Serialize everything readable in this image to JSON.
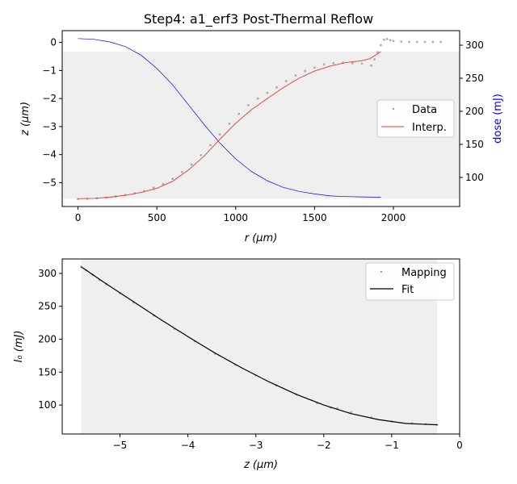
{
  "figure_title": "Step4: a1_erf3 Post-Thermal Reflow",
  "colors": {
    "data_points": "#9a9a9a",
    "interp_line": "#e03c31",
    "dose_line": "#0000ff",
    "fit_line": "#000000",
    "shade": "#efefef",
    "dose_axis_label": "#0000ff"
  },
  "chart_data": [
    {
      "type": "line",
      "title": "Step4: a1_erf3 Post-Thermal Reflow",
      "xlabel": "r (μm)",
      "ylabel": "z (μm)",
      "y2label": "dose (mJ)",
      "xlim": [
        -100,
        2420
      ],
      "ylim": [
        -5.85,
        0.42
      ],
      "y2lim": [
        56,
        322
      ],
      "xticks": [
        0,
        500,
        1000,
        1500,
        2000
      ],
      "yticks": [
        0,
        -1,
        -2,
        -3,
        -4,
        -5
      ],
      "y2ticks": [
        100,
        150,
        200,
        250,
        300
      ],
      "shaded_region": {
        "y_from": -5.57,
        "y_to": -0.33
      },
      "legend": {
        "position": "center-right",
        "entries": [
          "Data",
          "Interp."
        ]
      },
      "series": [
        {
          "name": "Data",
          "style": "points",
          "x": [
            0,
            60,
            120,
            180,
            240,
            300,
            360,
            420,
            480,
            540,
            600,
            660,
            720,
            780,
            840,
            900,
            960,
            1020,
            1080,
            1140,
            1200,
            1260,
            1320,
            1380,
            1440,
            1500,
            1560,
            1620,
            1680,
            1740,
            1800,
            1860,
            1880,
            1900,
            1920,
            1940,
            1960,
            1980,
            2000,
            2050,
            2100,
            2150,
            2200,
            2250,
            2300
          ],
          "y": [
            -5.58,
            -5.57,
            -5.56,
            -5.53,
            -5.49,
            -5.44,
            -5.38,
            -5.3,
            -5.18,
            -5.05,
            -4.86,
            -4.62,
            -4.35,
            -4.02,
            -3.66,
            -3.28,
            -2.9,
            -2.55,
            -2.24,
            -2.0,
            -1.8,
            -1.6,
            -1.38,
            -1.18,
            -1.02,
            -0.9,
            -0.78,
            -0.74,
            -0.72,
            -0.74,
            -0.76,
            -0.82,
            -0.6,
            -0.35,
            -0.1,
            0.1,
            0.12,
            0.08,
            0.05,
            0.03,
            0.02,
            0.02,
            0.02,
            0.02,
            0.02
          ]
        },
        {
          "name": "Interp.",
          "style": "line",
          "x": [
            0,
            100,
            200,
            300,
            400,
            500,
            600,
            700,
            800,
            900,
            1000,
            1100,
            1200,
            1300,
            1400,
            1500,
            1600,
            1700,
            1800,
            1850,
            1920
          ],
          "y": [
            -5.57,
            -5.56,
            -5.52,
            -5.45,
            -5.35,
            -5.2,
            -4.95,
            -4.55,
            -4.05,
            -3.45,
            -2.88,
            -2.4,
            -2.0,
            -1.62,
            -1.28,
            -1.02,
            -0.84,
            -0.72,
            -0.65,
            -0.58,
            -0.33
          ]
        },
        {
          "name": "dose",
          "axis": "right",
          "style": "line",
          "x": [
            0,
            100,
            200,
            300,
            400,
            500,
            600,
            700,
            800,
            900,
            1000,
            1100,
            1200,
            1300,
            1400,
            1500,
            1600,
            1700,
            1800,
            1920
          ],
          "y": [
            310,
            309,
            305,
            298,
            285,
            265,
            240,
            210,
            180,
            152,
            128,
            109,
            95,
            85,
            79,
            75,
            72,
            71,
            70.5,
            70
          ]
        }
      ]
    },
    {
      "type": "line",
      "xlabel": "z (μm)",
      "ylabel": "I₀ (mJ)",
      "xlim": [
        -5.85,
        0.0
      ],
      "ylim": [
        56,
        322
      ],
      "xticks": [
        -5,
        -4,
        -3,
        -2,
        -1,
        0
      ],
      "yticks": [
        100,
        150,
        200,
        250,
        300
      ],
      "shaded_region": {
        "x_from": -5.57,
        "x_to": -0.33
      },
      "legend": {
        "position": "top-right",
        "entries": [
          "Mapping",
          "Fit"
        ]
      },
      "series": [
        {
          "name": "Mapping",
          "style": "points",
          "x": [
            -5.57,
            -5.5,
            -5.4,
            -5.3,
            -5.2,
            -5.0,
            -4.8,
            -4.5,
            -4.2,
            -3.9,
            -3.6,
            -3.3,
            -3.0,
            -2.7,
            -2.4,
            -2.1,
            -1.9,
            -1.8,
            -1.6,
            -1.3,
            -1.0,
            -0.7,
            -0.5,
            -0.33
          ],
          "y": [
            310,
            305,
            298,
            290,
            284,
            270,
            256,
            236,
            216,
            197,
            178,
            161,
            145,
            130,
            116,
            103,
            96,
            95,
            89,
            81,
            75,
            72,
            71,
            70
          ]
        },
        {
          "name": "Fit",
          "style": "line",
          "x": [
            -5.57,
            -5.2,
            -4.8,
            -4.4,
            -4.0,
            -3.6,
            -3.2,
            -2.8,
            -2.4,
            -2.0,
            -1.6,
            -1.2,
            -0.8,
            -0.33
          ],
          "y": [
            310,
            284,
            257,
            230,
            204,
            179,
            156,
            135,
            116,
            100,
            87,
            78,
            72,
            70
          ]
        }
      ]
    }
  ]
}
